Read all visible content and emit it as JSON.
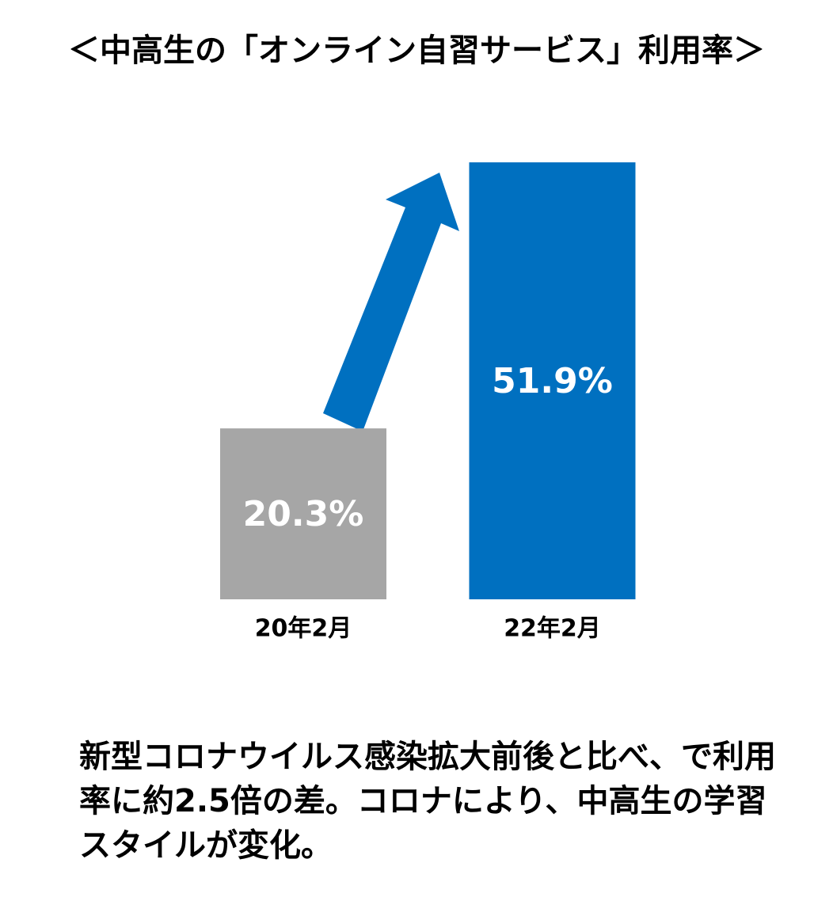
{
  "chart_data": {
    "type": "bar",
    "title": "＜中高生の「オンライン自習サービス」利用率＞",
    "categories": [
      "20年2月",
      "22年2月"
    ],
    "values": [
      20.3,
      51.9
    ],
    "value_labels": [
      "20.3%",
      "51.9%"
    ],
    "colors": [
      "#a6a6a6",
      "#0070c0"
    ],
    "ylim": [
      0,
      52
    ],
    "annotation": "新型コロナウイルス感染拡大前後と比べ、で利用率に約2.5倍の差。コロナにより、中高生の学習スタイルが変化。"
  }
}
